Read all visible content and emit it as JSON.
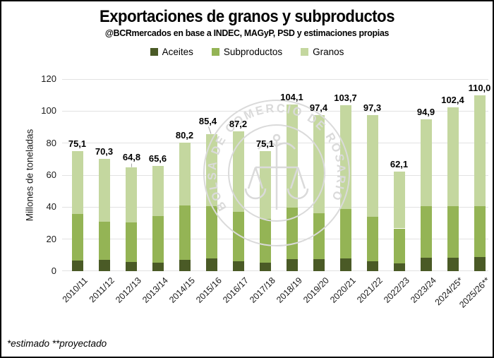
{
  "title": "Exportaciones de granos y subproductos",
  "subtitle": "@BCRmercados en base a INDEC, MAGyP, PSD y estimaciones propias",
  "footnote": "*estimado **proyectado",
  "watermark": {
    "text": "BOLSA DE COMERCIO DE ROSARIO"
  },
  "chart_data": {
    "type": "bar",
    "stacked": true,
    "title": "Exportaciones de granos y subproductos",
    "ylabel": "Millones de toneladas",
    "xlabel": "",
    "ylim": [
      0,
      120
    ],
    "ytick_step": 20,
    "grid": true,
    "legend_position": "top",
    "categories": [
      "2010/11",
      "2011/12",
      "2012/13",
      "2013/14",
      "2014/15",
      "2015/16",
      "2016/17",
      "2017/18",
      "2018/19",
      "2019/20",
      "2020/21",
      "2021/22",
      "2022/23",
      "2023/24",
      "2024/25*",
      "2025/26**"
    ],
    "series": [
      {
        "name": "Aceites",
        "color": "#4a5a26",
        "values": [
          6.5,
          7.2,
          5.8,
          5.1,
          7.0,
          8.0,
          6.1,
          5.2,
          7.5,
          7.6,
          7.8,
          6.4,
          4.8,
          8.4,
          8.5,
          9.0
        ]
      },
      {
        "name": "Subproductos",
        "color": "#94b455",
        "values": [
          29.3,
          23.9,
          24.6,
          29.4,
          34.0,
          32.4,
          30.8,
          27.5,
          32.4,
          28.7,
          31.1,
          27.4,
          21.9,
          32.4,
          32.3,
          31.5
        ]
      },
      {
        "name": "Granos",
        "color": "#c4d79f",
        "values": [
          39.3,
          39.2,
          34.4,
          31.1,
          39.2,
          45.0,
          50.3,
          42.4,
          64.2,
          61.1,
          64.8,
          63.5,
          35.4,
          54.1,
          61.6,
          69.5
        ]
      }
    ],
    "totals": [
      75.1,
      70.3,
      64.8,
      65.6,
      80.2,
      85.4,
      87.2,
      75.1,
      104.1,
      97.4,
      103.7,
      97.3,
      62.1,
      94.9,
      102.4,
      110.0
    ],
    "total_labels": [
      "75,1",
      "70,3",
      "64,8",
      "65,6",
      "80,2",
      "85,4",
      "87,2",
      "75,1",
      "104,1",
      "97,4",
      "103,7",
      "97,3",
      "62,1",
      "94,9",
      "102,4",
      "110,0"
    ],
    "ytick_labels": [
      "0",
      "20",
      "40",
      "60",
      "80",
      "100",
      "120"
    ]
  }
}
